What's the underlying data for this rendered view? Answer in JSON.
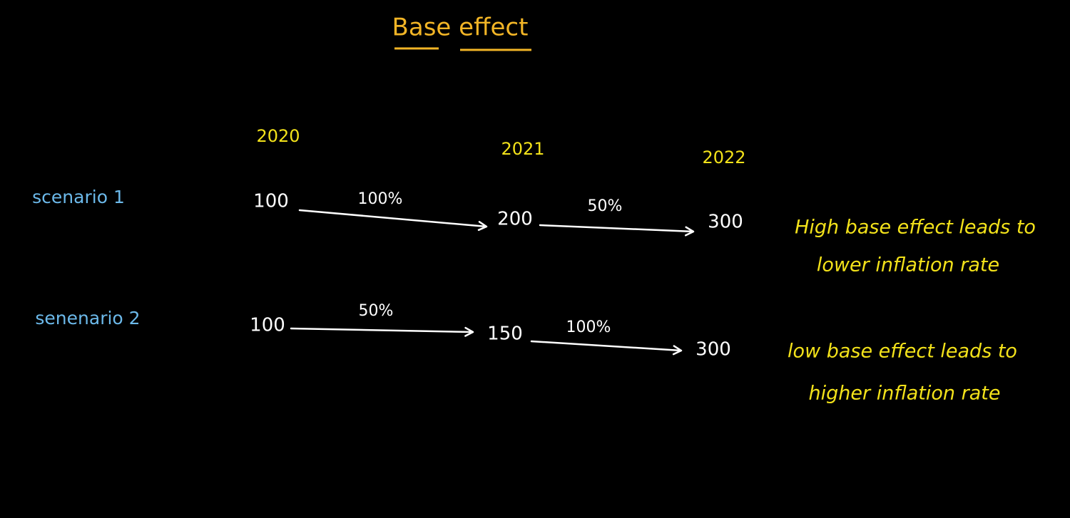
{
  "title": "Base effect",
  "years": [
    "2020",
    "2021",
    "2022"
  ],
  "scenarios": [
    {
      "label": "scenario 1",
      "values": [
        "100",
        "200",
        "300"
      ],
      "changes": [
        "100%",
        "50%"
      ],
      "note": [
        "High base effect leads to",
        "lower inflation rate"
      ]
    },
    {
      "label": "senenario 2",
      "values": [
        "100",
        "150",
        "300"
      ],
      "changes": [
        "50%",
        "100%"
      ],
      "note": [
        "low base effect leads to",
        "higher inflation rate"
      ]
    }
  ]
}
